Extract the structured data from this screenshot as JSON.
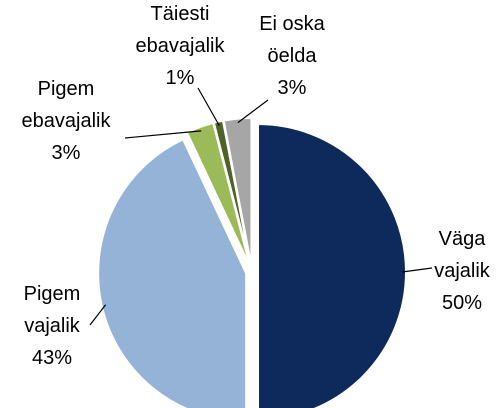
{
  "chart_data": {
    "type": "pie",
    "categories": [
      "Väga\nvajalik",
      "Pigem\nvajalik",
      "Pigem\nebavajalik",
      "Täiesti\nebavajalik",
      "Ei oska\nöelda"
    ],
    "values": [
      50,
      43,
      3,
      1,
      3
    ],
    "value_labels": [
      "50%",
      "43%",
      "3%",
      "1%",
      "3%"
    ],
    "colors": [
      "#0e2a5c",
      "#95b3d7",
      "#9bbb59",
      "#4f6228",
      "#a6a6a6"
    ]
  }
}
